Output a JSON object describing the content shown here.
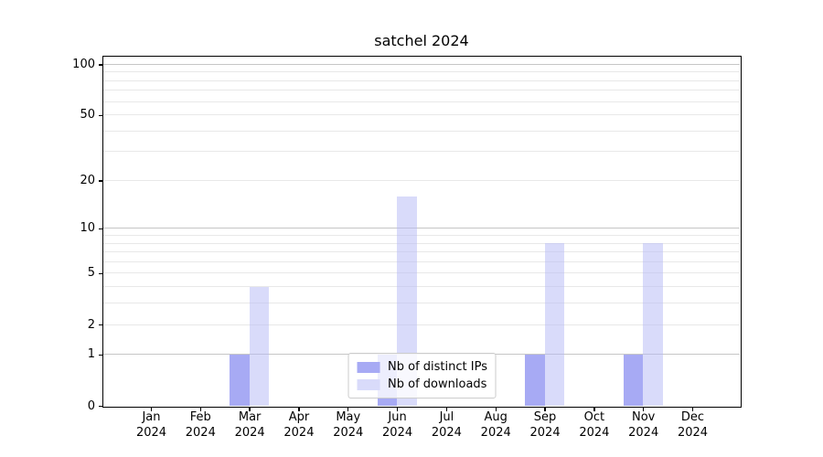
{
  "title": "satchel 2024",
  "chart_data": {
    "type": "bar",
    "title": "satchel 2024",
    "categories": [
      "Jan 2024",
      "Feb 2024",
      "Mar 2024",
      "Apr 2024",
      "May 2024",
      "Jun 2024",
      "Jul 2024",
      "Aug 2024",
      "Sep 2024",
      "Oct 2024",
      "Nov 2024",
      "Dec 2024"
    ],
    "series": [
      {
        "name": "Nb of distinct IPs",
        "color": "#a7aaf4",
        "fill": "rgba(133,137,240,0.72)",
        "values": [
          0,
          0,
          1,
          0,
          0,
          1,
          0,
          0,
          1,
          0,
          1,
          0
        ]
      },
      {
        "name": "Nb of downloads",
        "color": "#d9dbfa",
        "fill": "rgba(180,183,245,0.5)",
        "values": [
          0,
          0,
          4,
          0,
          0,
          16,
          0,
          0,
          8,
          0,
          8,
          0
        ]
      }
    ],
    "xlabel": "",
    "ylabel": "",
    "y_scale": "log1p",
    "ylim": [
      0,
      111
    ],
    "y_tick_labels": [
      0,
      1,
      2,
      5,
      10,
      20,
      50,
      100
    ],
    "grid": {
      "major_lines": [
        1,
        10,
        100
      ],
      "minor_lines": [
        2,
        3,
        4,
        5,
        6,
        7,
        8,
        9,
        20,
        30,
        40,
        50,
        60,
        70,
        80,
        90
      ],
      "major_color": "#c6c6c6",
      "minor_color": "#e8e8e8"
    },
    "legend_position": "lower center"
  }
}
